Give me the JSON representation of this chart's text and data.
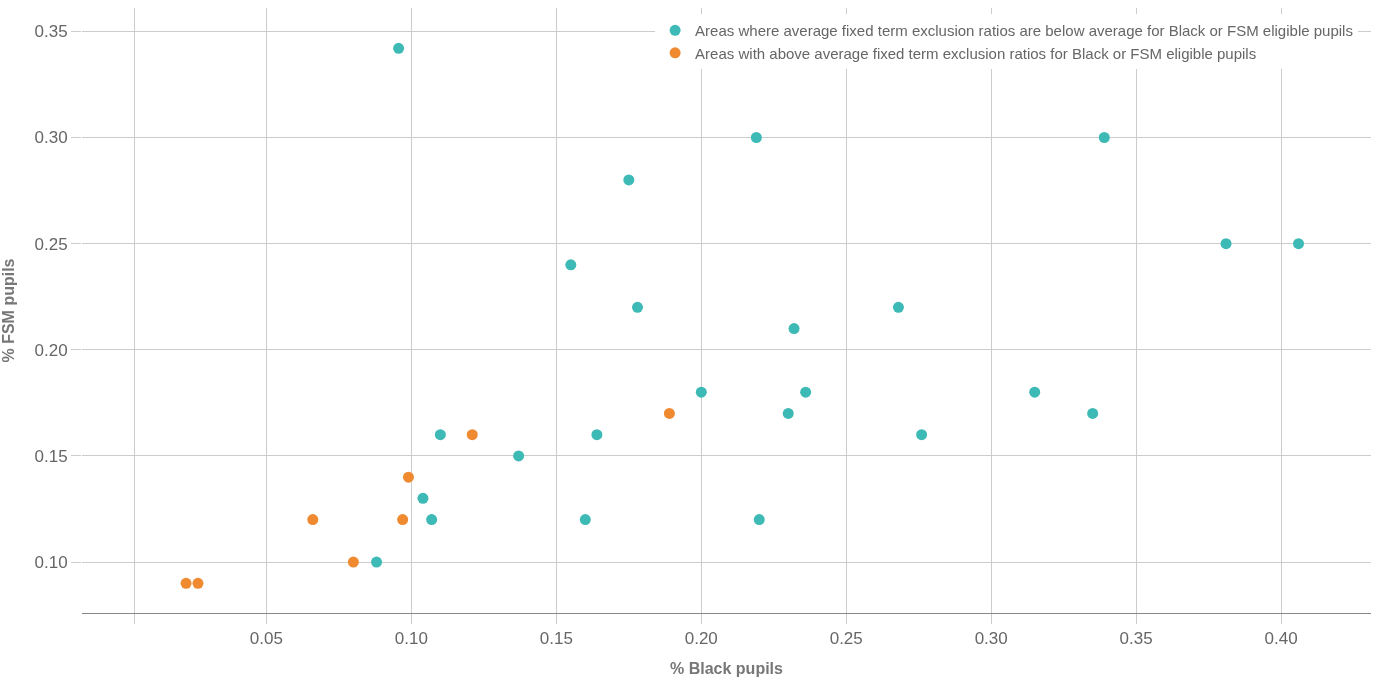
{
  "chart_data": {
    "type": "scatter",
    "xlabel": "% Black pupils",
    "ylabel": "% FSM pupils",
    "xlim": [
      -0.0136,
      0.431
    ],
    "ylim": [
      0.076,
      0.361
    ],
    "xticks": [
      {
        "value": 0.0045,
        "label": null
      },
      0.05,
      {
        "value": 0.1,
        "label": "0.10"
      },
      0.15,
      {
        "value": 0.2,
        "label": "0.20"
      },
      0.25,
      {
        "value": 0.3,
        "label": "0.30"
      },
      0.35,
      {
        "value": 0.4,
        "label": "0.40"
      }
    ],
    "yticks": [
      {
        "value": 0.1,
        "label": "0.10"
      },
      0.15,
      {
        "value": 0.2,
        "label": "0.20"
      },
      0.25,
      {
        "value": 0.3,
        "label": "0.30"
      },
      0.35
    ],
    "grid": true,
    "legend": "top right",
    "marker": "circle",
    "series": [
      {
        "name": "Areas where average fixed term exclusion ratios are below average for Black or FSM eligible pupils",
        "color": "#3dbab5",
        "x": [
          0.0956,
          0.219,
          0.339,
          0.175,
          0.381,
          0.406,
          0.155,
          0.178,
          0.268,
          0.232,
          0.2,
          0.236,
          0.315,
          0.23,
          0.335,
          0.11,
          0.164,
          0.276,
          0.137,
          0.104,
          0.107,
          0.16,
          0.22,
          0.088
        ],
        "values": [
          0.342,
          0.3,
          0.3,
          0.28,
          0.25,
          0.25,
          0.24,
          0.22,
          0.22,
          0.21,
          0.18,
          0.18,
          0.18,
          0.17,
          0.17,
          0.16,
          0.16,
          0.16,
          0.15,
          0.13,
          0.12,
          0.12,
          0.12,
          0.1
        ]
      },
      {
        "name": "Areas with above average fixed term exclusion ratios for Black or FSM eligible pupils",
        "color": "#f08a30",
        "x": [
          0.0223,
          0.0264,
          0.066,
          0.08,
          0.097,
          0.099,
          0.121,
          0.189
        ],
        "values": [
          0.09,
          0.09,
          0.12,
          0.1,
          0.12,
          0.14,
          0.16,
          0.17
        ]
      }
    ]
  }
}
